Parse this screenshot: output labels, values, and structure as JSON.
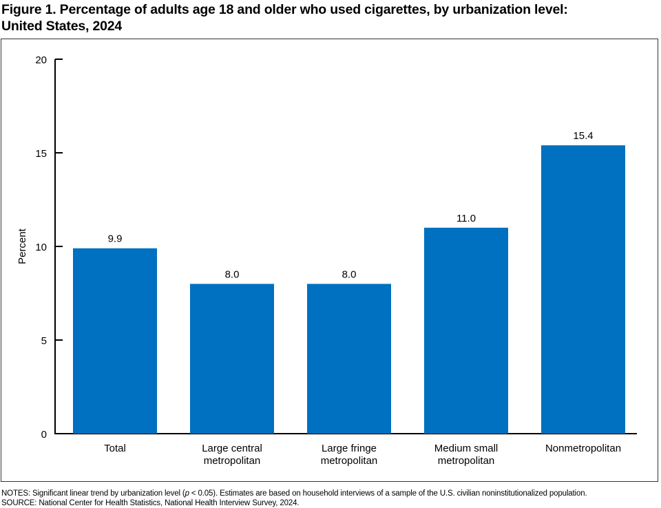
{
  "title_line1": "Figure 1. Percentage of adults age 18 and older who used cigarettes, by urbanization level:",
  "title_line2": "United States, 2024",
  "notes": {
    "notes_prefix": "NOTES: Significant linear trend by urbanization level (",
    "notes_p": "p",
    "notes_suffix": " < 0.05). Estimates are based on household interviews of a sample of the U.S. civilian noninstitutionalized population.",
    "source": "SOURCE: National Center for Health Statistics, National Health Interview Survey, 2024."
  },
  "chart_data": {
    "type": "bar",
    "title": "Figure 1. Percentage of adults age 18 and older who used cigarettes, by urbanization level: United States, 2024",
    "categories": [
      [
        "Total"
      ],
      [
        "Large central",
        "metropolitan"
      ],
      [
        "Large fringe",
        "metropolitan"
      ],
      [
        "Medium small",
        "metropolitan"
      ],
      [
        "Nonmetropolitan"
      ]
    ],
    "values": [
      9.9,
      8.0,
      8.0,
      11.0,
      15.4
    ],
    "data_labels": [
      "9.9",
      "8.0",
      "8.0",
      "11.0",
      "15.4"
    ],
    "ylabel": "Percent",
    "xlabel": "",
    "ylim": [
      0,
      20
    ],
    "yticks": [
      0,
      5,
      10,
      15,
      20
    ],
    "grid": false,
    "bar_color": "#0070c0"
  }
}
